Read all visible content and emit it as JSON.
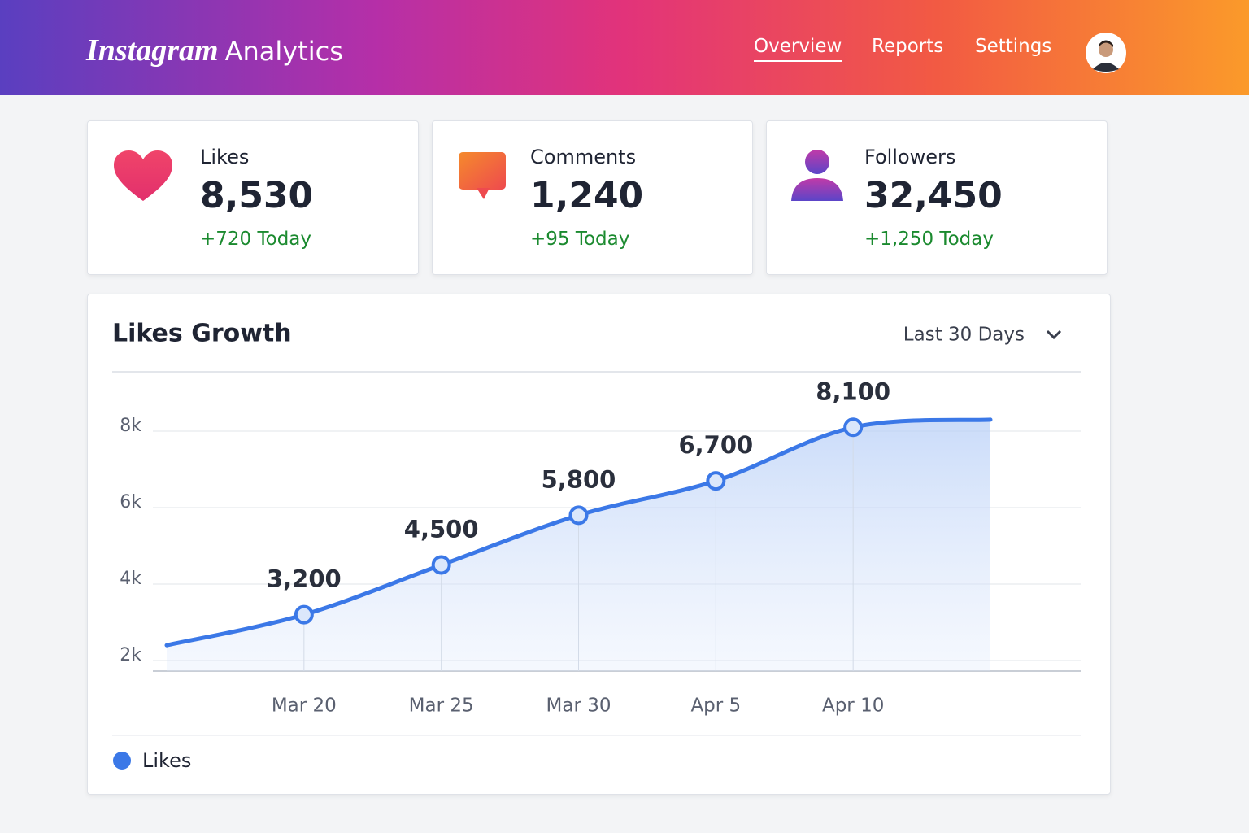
{
  "header": {
    "logo_script": "Instagram",
    "logo_text": "Analytics",
    "nav": [
      "Overview",
      "Reports",
      "Settings"
    ]
  },
  "cards": [
    {
      "label": "Likes",
      "value": "8,530",
      "change": "+720 Today"
    },
    {
      "label": "Comments",
      "value": "1,240",
      "change": "+95 Today"
    },
    {
      "label": "Followers",
      "value": "32,450",
      "change": "+1,250 Today"
    }
  ],
  "chart_data": {
    "type": "line",
    "title": "Likes Growth",
    "range_selector": "Last 30 Days",
    "categories": [
      null,
      "Mar 20",
      "Mar 25",
      "Mar 30",
      "Apr 5",
      "Apr 10",
      null
    ],
    "series": [
      {
        "name": "Likes",
        "color": "#3b78e7",
        "values": [
          2400,
          3200,
          4500,
          5800,
          6700,
          8100,
          8300
        ],
        "value_labels": [
          null,
          "3,200",
          "4,500",
          "5,800",
          "6,700",
          "8,100",
          null
        ]
      }
    ],
    "ylim": [
      2000,
      9000
    ],
    "yticks": [
      {
        "value": 2000,
        "label": "2k"
      },
      {
        "value": 4000,
        "label": "4k"
      },
      {
        "value": 6000,
        "label": "6k"
      },
      {
        "value": 8000,
        "label": "8k"
      }
    ],
    "grid": true
  }
}
